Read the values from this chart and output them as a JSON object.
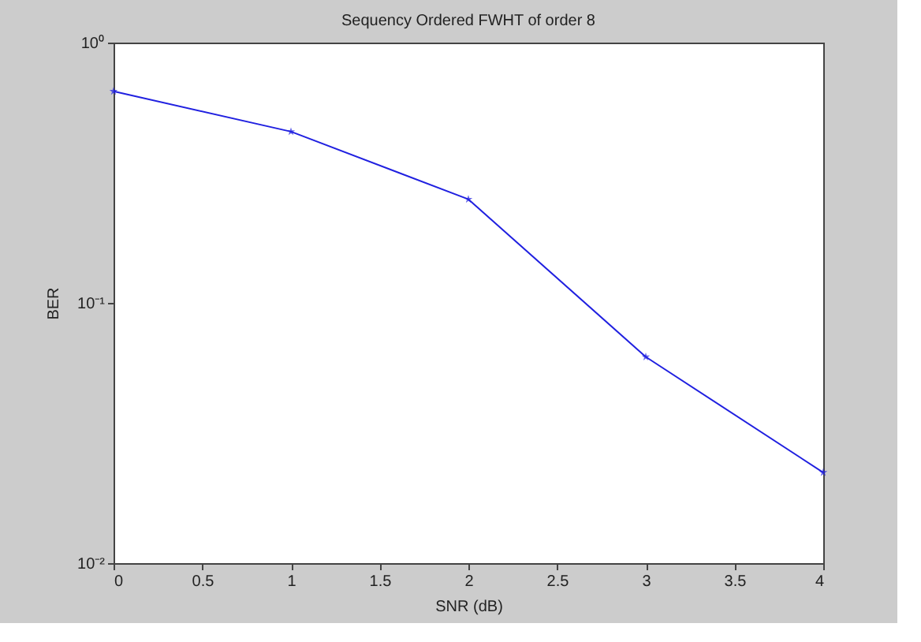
{
  "chart_data": {
    "type": "line",
    "title": "Sequency Ordered FWHT of order 8",
    "xlabel": "SNR (dB)",
    "ylabel": "BER",
    "x": [
      0,
      1,
      2,
      3,
      4
    ],
    "series": [
      {
        "color": "#2020e0",
        "values": [
          0.65,
          0.455,
          0.25,
          0.062,
          0.0223
        ]
      }
    ],
    "xlim": [
      0,
      4
    ],
    "xticks": [
      0,
      0.5,
      1,
      1.5,
      2,
      2.5,
      3,
      3.5,
      4
    ],
    "ylim": [
      0.01,
      1
    ],
    "yticks": [
      {
        "value": 0.01,
        "label": "10⁻²"
      },
      {
        "value": 0.1,
        "label": "10⁻¹"
      },
      {
        "value": 1,
        "label": "10⁰"
      }
    ],
    "log": true,
    "grid": false,
    "marker": "star",
    "line_style": "solid"
  }
}
